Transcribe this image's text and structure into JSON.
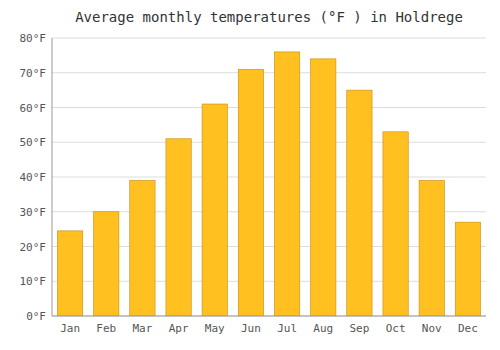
{
  "chart_data": {
    "type": "bar",
    "title": "Average monthly temperatures (°F ) in Holdrege",
    "categories": [
      "Jan",
      "Feb",
      "Mar",
      "Apr",
      "May",
      "Jun",
      "Jul",
      "Aug",
      "Sep",
      "Oct",
      "Nov",
      "Dec"
    ],
    "values": [
      24.5,
      30,
      39,
      51,
      61,
      71,
      76,
      74,
      65,
      53,
      39,
      27
    ],
    "color": "#FFC020",
    "ylim": [
      0,
      80
    ],
    "yticks": [
      {
        "value": 0,
        "label": "0°F"
      },
      {
        "value": 10,
        "label": "10°F"
      },
      {
        "value": 20,
        "label": "20°F"
      },
      {
        "value": 30,
        "label": "30°F"
      },
      {
        "value": 40,
        "label": "40°F"
      },
      {
        "value": 50,
        "label": "50°F"
      },
      {
        "value": 60,
        "label": "60°F"
      },
      {
        "value": 70,
        "label": "70°F"
      },
      {
        "value": 80,
        "label": "80°F"
      }
    ],
    "grid": true
  }
}
